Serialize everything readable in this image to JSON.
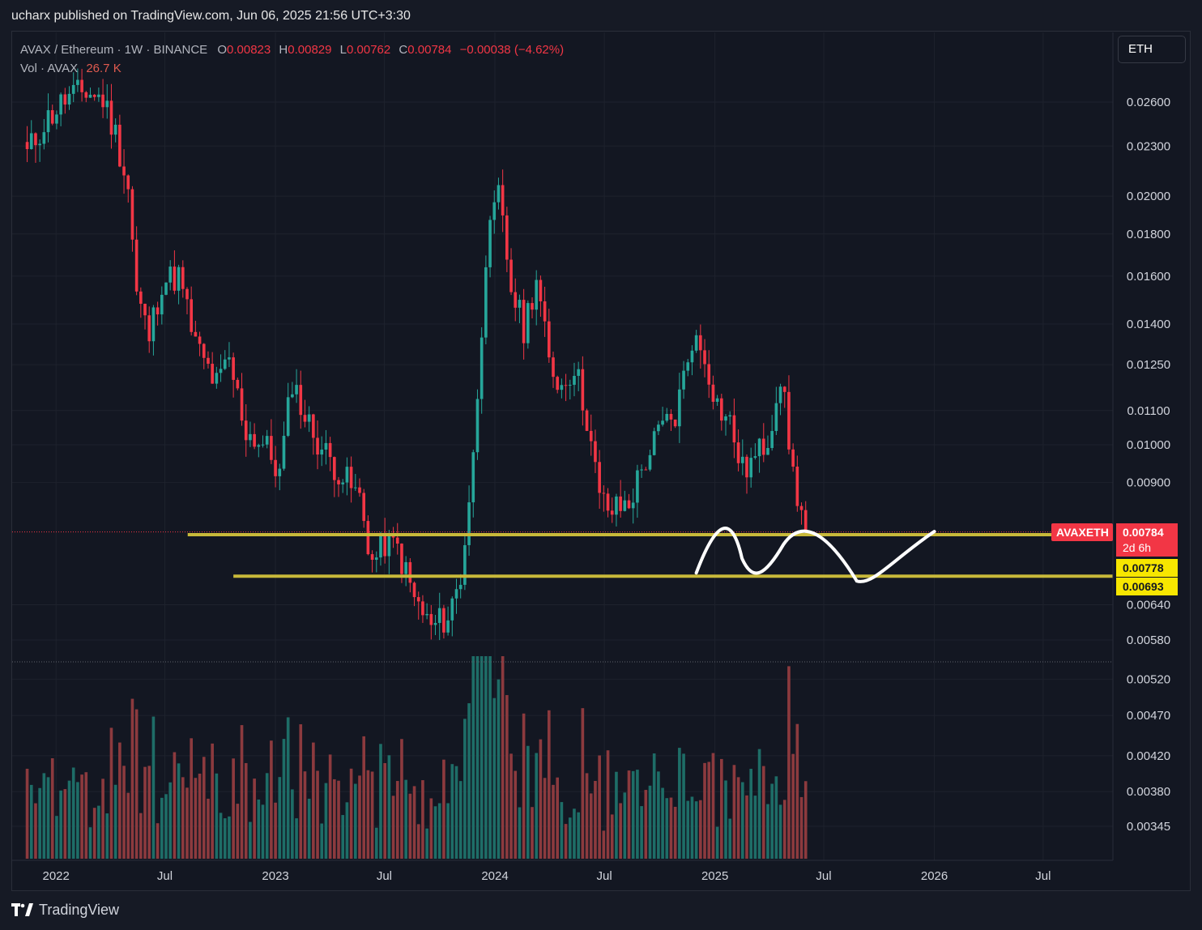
{
  "header": {
    "published_text": "ucharx published on TradingView.com, Jun 06, 2025 21:56 UTC+3:30"
  },
  "legend": {
    "symbol_line": "AVAX / Ethereum · 1W · BINANCE",
    "o_label": "O",
    "o_value": "0.00823",
    "h_label": "H",
    "h_value": "0.00829",
    "l_label": "L",
    "l_value": "0.00762",
    "c_label": "C",
    "c_value": "0.00784",
    "change": "−0.00038 (−4.62%)",
    "vol_label": "Vol · AVAX",
    "vol_value": "26.7 K"
  },
  "currency_button": {
    "label": "ETH"
  },
  "price_tags": {
    "symbol": "AVAXETH",
    "last_price": "0.00784",
    "countdown": "2d 6h",
    "line_upper": "0.00778",
    "line_lower": "0.00693"
  },
  "footer": {
    "brand": "TradingView"
  },
  "colors": {
    "up": "#26a69a",
    "down": "#f23645",
    "vol_up": "#1e6d67",
    "vol_down": "#8c3a3e",
    "hline": "#c8b93a",
    "drawing": "#ffffff"
  },
  "chart_data": {
    "type": "candlestick",
    "symbol": "AVAXETH",
    "scale": "log",
    "y_ticks": [
      0.026,
      0.023,
      0.02,
      0.018,
      0.016,
      0.014,
      0.0125,
      0.011,
      0.01,
      0.009,
      0.0064,
      0.0058,
      0.0052,
      0.0047,
      0.0042,
      0.0038,
      0.00345
    ],
    "y_tick_labels": [
      "0.02600",
      "0.02300",
      "0.02000",
      "0.01800",
      "0.01600",
      "0.01400",
      "0.01250",
      "0.01100",
      "0.01000",
      "0.00900",
      "0.00640",
      "0.00580",
      "0.00520",
      "0.00470",
      "0.00420",
      "0.00380",
      "0.00345"
    ],
    "x_ticks": [
      {
        "date": "2022-01-01",
        "label": "2022"
      },
      {
        "date": "2022-07-01",
        "label": "Jul"
      },
      {
        "date": "2023-01-01",
        "label": "2023"
      },
      {
        "date": "2023-07-01",
        "label": "Jul"
      },
      {
        "date": "2024-01-01",
        "label": "2024"
      },
      {
        "date": "2024-07-01",
        "label": "Jul"
      },
      {
        "date": "2025-01-01",
        "label": "2025"
      },
      {
        "date": "2025-07-01",
        "label": "Jul"
      },
      {
        "date": "2026-01-01",
        "label": "2026"
      },
      {
        "date": "2026-07-01",
        "label": "Jul"
      }
    ],
    "x_range": [
      "2021-10-20",
      "2026-10-25"
    ],
    "key_closes": [
      [
        "2021-11-14",
        0.0225
      ],
      [
        "2021-12-12",
        0.0245
      ],
      [
        "2022-01-16",
        0.0262
      ],
      [
        "2022-02-20",
        0.0268
      ],
      [
        "2022-03-20",
        0.0262
      ],
      [
        "2022-04-10",
        0.0238
      ],
      [
        "2022-05-01",
        0.0205
      ],
      [
        "2022-05-15",
        0.0152
      ],
      [
        "2022-06-05",
        0.0135
      ],
      [
        "2022-06-26",
        0.0158
      ],
      [
        "2022-07-24",
        0.016
      ],
      [
        "2022-08-21",
        0.0132
      ],
      [
        "2022-09-25",
        0.0118
      ],
      [
        "2022-10-16",
        0.0126
      ],
      [
        "2022-11-13",
        0.0104
      ],
      [
        "2022-12-18",
        0.0099
      ],
      [
        "2023-01-08",
        0.0092
      ],
      [
        "2023-01-29",
        0.012
      ],
      [
        "2023-02-19",
        0.0108
      ],
      [
        "2023-03-19",
        0.0099
      ],
      [
        "2023-04-16",
        0.0093
      ],
      [
        "2023-05-21",
        0.0086
      ],
      [
        "2023-06-11",
        0.0072
      ],
      [
        "2023-07-02",
        0.0076
      ],
      [
        "2023-07-23",
        0.0075
      ],
      [
        "2023-08-20",
        0.0065
      ],
      [
        "2023-09-17",
        0.006
      ],
      [
        "2023-10-15",
        0.0062
      ],
      [
        "2023-11-05",
        0.0069
      ],
      [
        "2023-11-26",
        0.0096
      ],
      [
        "2023-12-17",
        0.017
      ],
      [
        "2024-01-07",
        0.02
      ],
      [
        "2024-01-28",
        0.0155
      ],
      [
        "2024-02-18",
        0.0138
      ],
      [
        "2024-03-10",
        0.016
      ],
      [
        "2024-03-31",
        0.0125
      ],
      [
        "2024-04-21",
        0.0118
      ],
      [
        "2024-05-12",
        0.0125
      ],
      [
        "2024-06-02",
        0.0108
      ],
      [
        "2024-06-23",
        0.0086
      ],
      [
        "2024-07-14",
        0.0083
      ],
      [
        "2024-08-11",
        0.0085
      ],
      [
        "2024-09-08",
        0.0096
      ],
      [
        "2024-10-06",
        0.0105
      ],
      [
        "2024-10-27",
        0.0108
      ],
      [
        "2024-11-24",
        0.0135
      ],
      [
        "2024-12-15",
        0.0128
      ],
      [
        "2025-01-05",
        0.0112
      ],
      [
        "2025-01-26",
        0.0106
      ],
      [
        "2025-02-16",
        0.0093
      ],
      [
        "2025-03-09",
        0.0096
      ],
      [
        "2025-03-30",
        0.0102
      ],
      [
        "2025-04-20",
        0.0122
      ],
      [
        "2025-05-11",
        0.0092
      ],
      [
        "2025-06-01",
        0.00784
      ]
    ],
    "last_close": 0.00784,
    "horizontal_lines": [
      {
        "price": 0.00778,
        "from": "2022-08-08",
        "to": "2026-10-25"
      },
      {
        "price": 0.00693,
        "from": "2022-10-23",
        "to": "2026-10-25"
      }
    ],
    "volume_unit": "AVAX"
  }
}
